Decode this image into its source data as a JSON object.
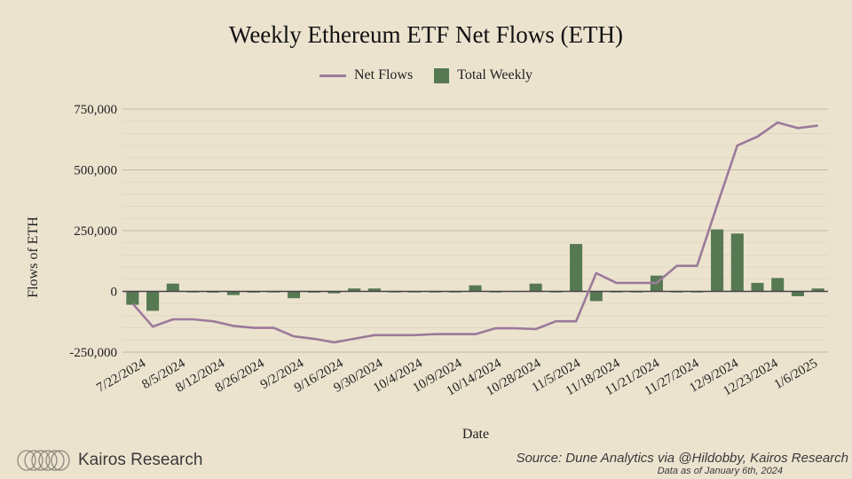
{
  "chart_data": {
    "type": "bar+line",
    "title": "Weekly Ethereum ETF Net Flows (ETH)",
    "xlabel": "Date",
    "ylabel": "Flows of ETH",
    "ylim": [
      -250000,
      750000
    ],
    "yticks": [
      750000,
      500000,
      250000,
      0,
      -250000
    ],
    "ytick_labels": [
      "750,000",
      "500,000",
      "250,000",
      "0",
      "-250,000"
    ],
    "x_tick_labels": [
      "7/22/2024",
      "8/5/2024",
      "8/12/2024",
      "8/26/2024",
      "9/2/2024",
      "9/16/2024",
      "9/30/2024",
      "10/4/2024",
      "10/9/2024",
      "10/14/2024",
      "10/28/2024",
      "11/5/2024",
      "11/18/2024",
      "11/21/2024",
      "11/27/2024",
      "12/9/2024",
      "12/23/2024",
      "1/6/2025"
    ],
    "legend": [
      "Net Flows",
      "Total Weekly"
    ],
    "series": [
      {
        "name": "Net Flows",
        "type": "line",
        "color": "#9b7a9a",
        "values": [
          -50000,
          -145000,
          -115000,
          -115000,
          -123000,
          -142000,
          -150000,
          -150000,
          -185000,
          -195000,
          -210000,
          -195000,
          -180000,
          -180000,
          -180000,
          -176000,
          -176000,
          -176000,
          -152000,
          -152000,
          -155000,
          -123000,
          -123000,
          75000,
          35000,
          35000,
          35000,
          105000,
          105000,
          355000,
          600000,
          637000,
          695000,
          672000,
          682000
        ]
      },
      {
        "name": "Total Weekly",
        "type": "bar",
        "color": "#567952",
        "values": [
          -55000,
          -80000,
          32000,
          0,
          -5000,
          -15000,
          -5000,
          0,
          -28000,
          -5000,
          -8000,
          12000,
          12000,
          0,
          0,
          0,
          0,
          25000,
          0,
          2000,
          32000,
          0,
          195000,
          -40000,
          0,
          0,
          65000,
          0,
          0,
          255000,
          238000,
          35000,
          55000,
          -20000,
          12000
        ]
      }
    ]
  },
  "branding": {
    "name": "Kairos Research"
  },
  "source": {
    "main": "Source: Dune Analytics via @Hildobby, Kairos Research",
    "sub": "Data as of January 6th, 2024"
  }
}
